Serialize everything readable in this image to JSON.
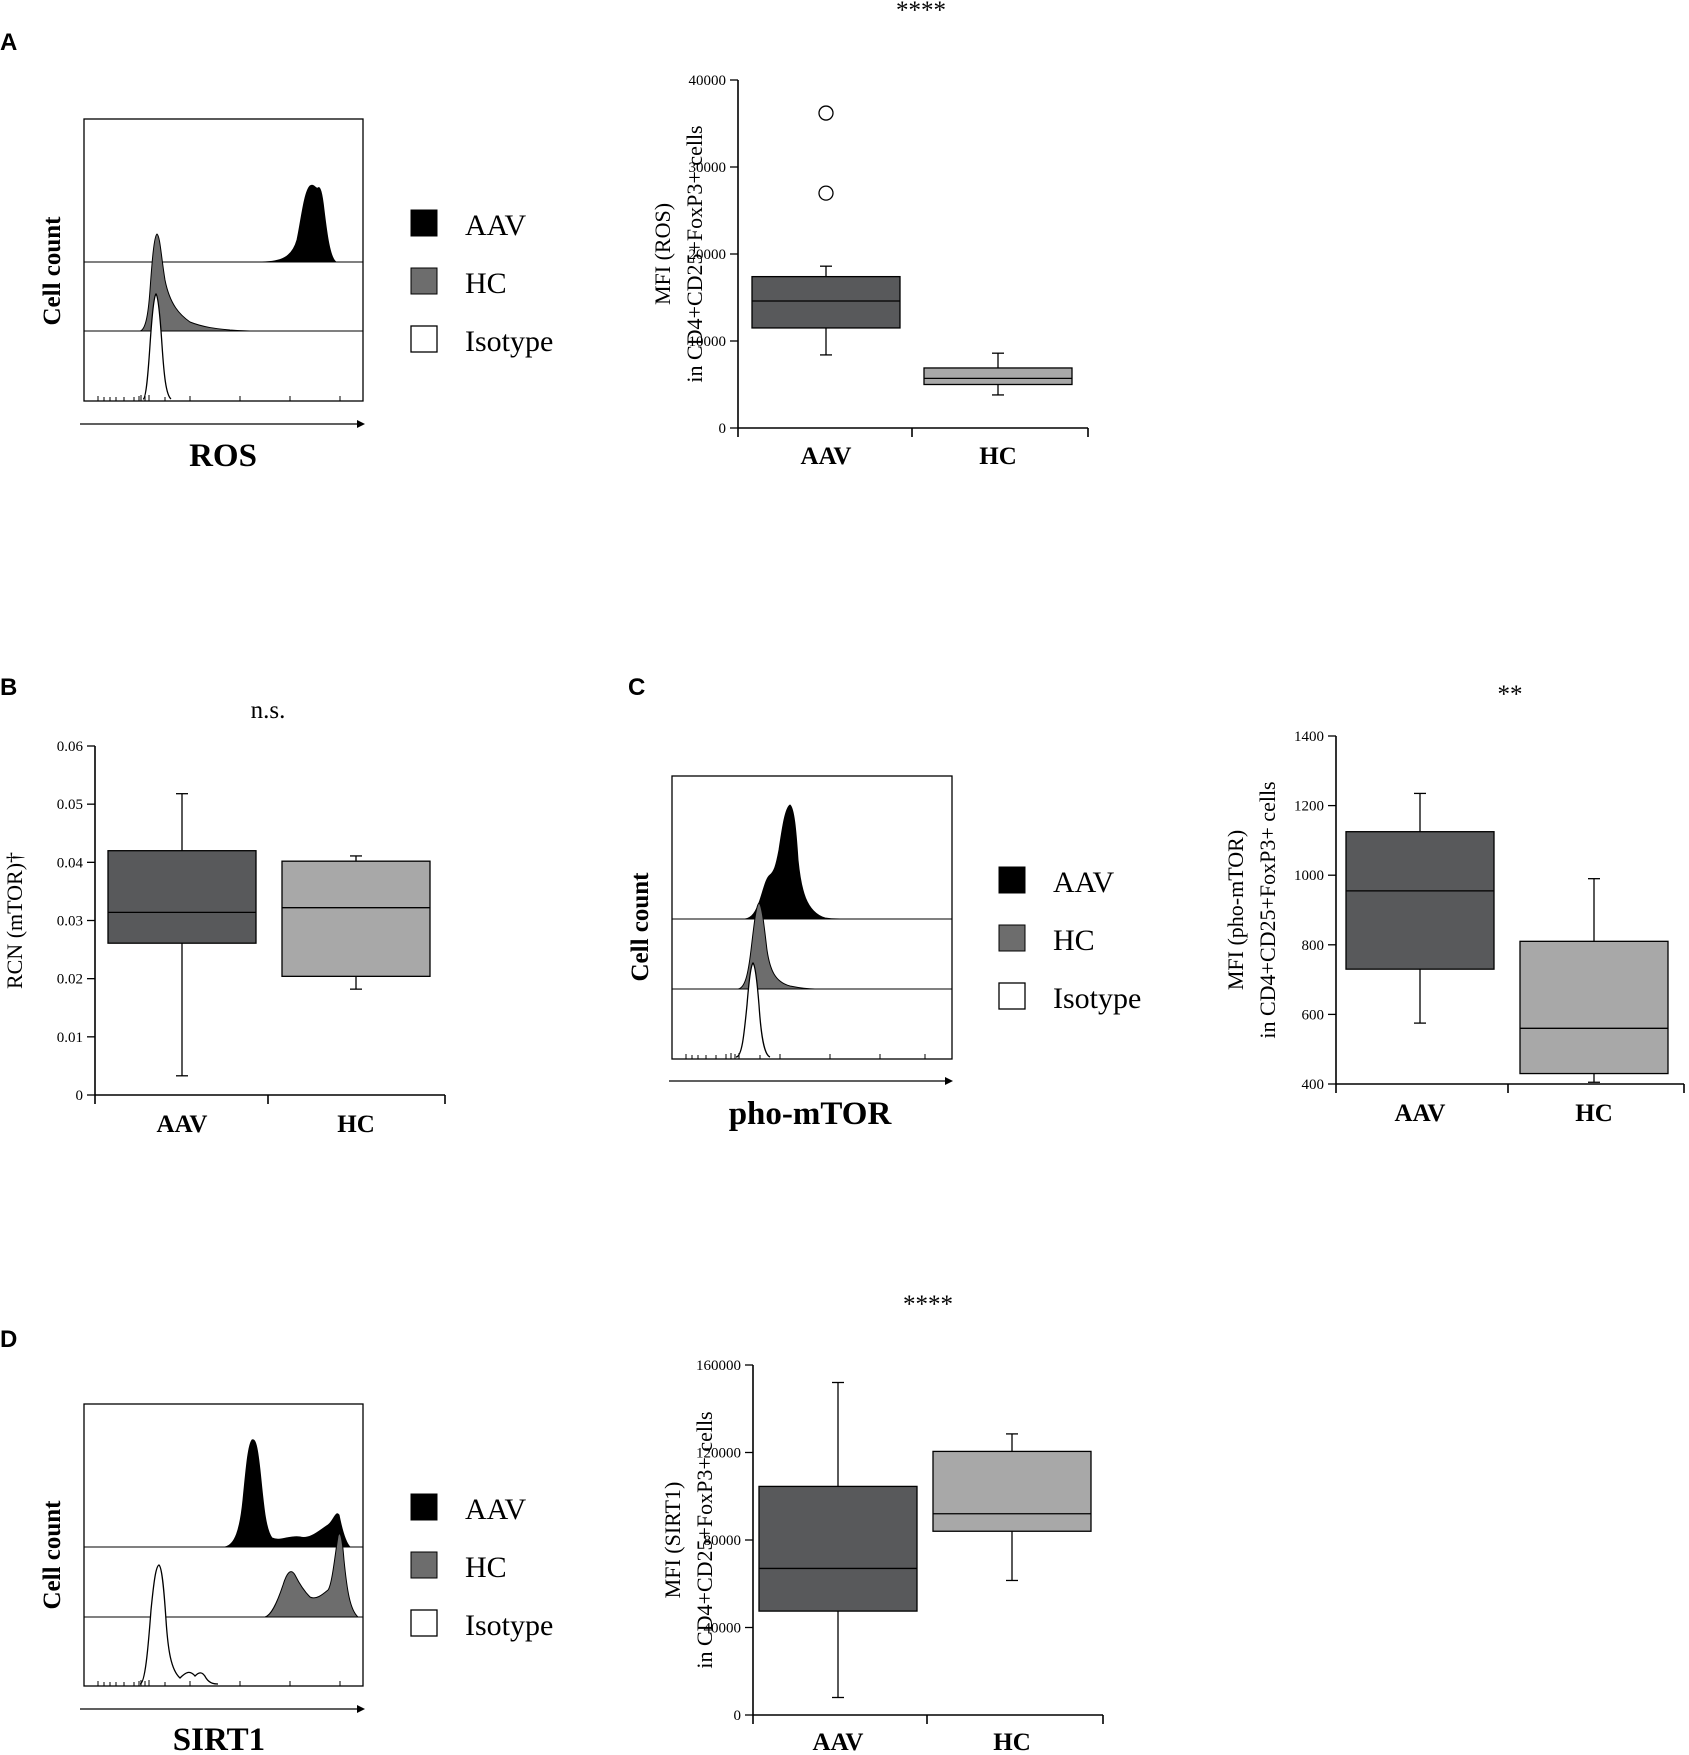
{
  "panels": [
    "A",
    "B",
    "C",
    "D"
  ],
  "colors": {
    "aav_box": "#58595b",
    "hc_box": "#a8a8a8",
    "hist_aav": "#000000",
    "hist_hc": "#6d6d6d",
    "hist_isotype": "#ffffff"
  },
  "legend": [
    "AAV",
    "HC",
    "Isotype"
  ],
  "histograms": [
    {
      "panel": "A",
      "xlabel": "ROS",
      "ylabel": "Cell count",
      "legend": [
        "AAV",
        "HC",
        "Isotype"
      ]
    },
    {
      "panel": "C",
      "xlabel": "pho-mTOR",
      "ylabel": "Cell count",
      "legend": [
        "AAV",
        "HC",
        "Isotype"
      ]
    },
    {
      "panel": "D",
      "xlabel": "SIRT1",
      "ylabel": "Cell count",
      "legend": [
        "AAV",
        "HC",
        "Isotype"
      ]
    }
  ],
  "chart_data": [
    {
      "panel": "A",
      "type": "box",
      "title": "****",
      "ylabel": [
        "MFI (ROS)",
        "in CD4+CD25+FoxP3+ cells"
      ],
      "categories": [
        "AAV",
        "HC"
      ],
      "ylim": [
        0,
        40000
      ],
      "yticks": [
        0,
        10000,
        20000,
        30000,
        40000
      ],
      "ytick_labels": [
        "0",
        "10000",
        "20000",
        "30000",
        "40000"
      ],
      "boxes": [
        {
          "name": "AAV",
          "whisker_low": 8400,
          "q1": 11500,
          "median": 14600,
          "q3": 17400,
          "whisker_high": 18600,
          "outliers": [
            27000,
            36200
          ]
        },
        {
          "name": "HC",
          "whisker_low": 3800,
          "q1": 5000,
          "median": 5700,
          "q3": 6900,
          "whisker_high": 8600,
          "outliers": []
        }
      ]
    },
    {
      "panel": "B",
      "type": "box",
      "title": "n.s.",
      "ylabel": [
        "RCN (mTOR)†"
      ],
      "categories": [
        "AAV",
        "HC"
      ],
      "ylim": [
        0,
        0.06
      ],
      "yticks": [
        0,
        0.01,
        0.02,
        0.03,
        0.04,
        0.05,
        0.06
      ],
      "ytick_labels": [
        "0",
        "0.01",
        "0.02",
        "0.03",
        "0.04",
        "0.05",
        "0.06"
      ],
      "boxes": [
        {
          "name": "AAV",
          "whisker_low": 0.0033,
          "q1": 0.0261,
          "median": 0.0314,
          "q3": 0.042,
          "whisker_high": 0.0518,
          "outliers": []
        },
        {
          "name": "HC",
          "whisker_low": 0.0182,
          "q1": 0.0204,
          "median": 0.0322,
          "q3": 0.0402,
          "whisker_high": 0.0411,
          "outliers": []
        }
      ]
    },
    {
      "panel": "C",
      "type": "box",
      "title": "**",
      "ylabel": [
        "MFI (pho-mTOR)",
        "in CD4+CD25+FoxP3+ cells"
      ],
      "categories": [
        "AAV",
        "HC"
      ],
      "ylim": [
        400,
        1400
      ],
      "yticks": [
        400,
        600,
        800,
        1000,
        1200,
        1400
      ],
      "ytick_labels": [
        "400",
        "600",
        "800",
        "1000",
        "1200",
        "1400"
      ],
      "boxes": [
        {
          "name": "AAV",
          "whisker_low": 575,
          "q1": 730,
          "median": 955,
          "q3": 1125,
          "whisker_high": 1235,
          "outliers": []
        },
        {
          "name": "HC",
          "whisker_low": 405,
          "q1": 430,
          "median": 560,
          "q3": 810,
          "whisker_high": 990,
          "outliers": []
        }
      ]
    },
    {
      "panel": "D",
      "type": "box",
      "title": "****",
      "ylabel": [
        "MFI (SIRT1)",
        "in CD4+CD25+FoxP3+ cells"
      ],
      "categories": [
        "AAV",
        "HC"
      ],
      "ylim": [
        0,
        160000
      ],
      "yticks": [
        0,
        40000,
        80000,
        120000,
        160000
      ],
      "ytick_labels": [
        "0",
        "40000",
        "80000",
        "120000",
        "160000"
      ],
      "boxes": [
        {
          "name": "AAV",
          "whisker_low": 8000,
          "q1": 47500,
          "median": 67000,
          "q3": 104500,
          "whisker_high": 152000,
          "outliers": []
        },
        {
          "name": "HC",
          "whisker_low": 61500,
          "q1": 84000,
          "median": 92000,
          "q3": 120500,
          "whisker_high": 128500,
          "outliers": []
        }
      ]
    }
  ]
}
